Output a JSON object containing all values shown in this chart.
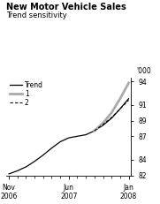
{
  "title": "New Motor Vehicle Sales",
  "subtitle": "Trend sensitivity",
  "ylabel": "'000",
  "ylim": [
    82,
    94.5
  ],
  "yticks": [
    82,
    84,
    87,
    89,
    91,
    94
  ],
  "xlim": [
    -0.3,
    14.3
  ],
  "x_tick_positions": [
    0,
    7,
    14
  ],
  "x_tick_labels": [
    "Nov\n2006",
    "Jun\n2007",
    "Jan\n2008"
  ],
  "x_minor_ticks": [
    0,
    1,
    2,
    3,
    4,
    5,
    6,
    7,
    8,
    9,
    10,
    11,
    12,
    13,
    14
  ],
  "trend_color": "#000000",
  "line1_color": "#aaaaaa",
  "line2_color": "#000000",
  "background_color": "#ffffff",
  "trend_data_x": [
    0,
    1,
    2,
    3,
    4,
    5,
    6,
    7,
    8,
    9,
    10,
    11,
    12,
    13,
    14
  ],
  "trend_data_y": [
    82.2,
    82.6,
    83.1,
    83.8,
    84.6,
    85.5,
    86.3,
    86.8,
    87.0,
    87.2,
    87.7,
    88.4,
    89.3,
    90.5,
    91.8
  ],
  "line1_data_x": [
    10,
    11,
    12,
    13,
    14
  ],
  "line1_data_y": [
    87.7,
    88.7,
    90.0,
    91.8,
    93.8
  ],
  "line2_data_x": [
    10,
    11,
    12,
    13,
    14
  ],
  "line2_data_y": [
    87.7,
    88.5,
    89.4,
    90.5,
    91.6
  ],
  "legend_labels": [
    "Trend",
    "1",
    "2"
  ],
  "title_fontsize": 7,
  "subtitle_fontsize": 6,
  "tick_fontsize": 5.5,
  "legend_fontsize": 5.5
}
